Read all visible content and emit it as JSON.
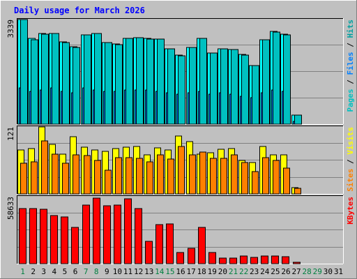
{
  "chart_data": {
    "type": "bar",
    "title": "Daily usage for March 2026",
    "categories": [
      "1",
      "2",
      "3",
      "4",
      "5",
      "6",
      "7",
      "8",
      "9",
      "10",
      "11",
      "12",
      "13",
      "14",
      "15",
      "16",
      "17",
      "18",
      "19",
      "20",
      "21",
      "22",
      "23",
      "24",
      "25",
      "26",
      "27",
      "28",
      "29",
      "30",
      "31"
    ],
    "weekend_days": [
      "1",
      "7",
      "8",
      "14",
      "15",
      "21",
      "22",
      "28",
      "29"
    ],
    "panels": [
      {
        "name": "hits",
        "scale_label": "3339",
        "ymax": 3339,
        "series": [
          {
            "name": "Hits",
            "color": "#00ffff",
            "shade": "#009999",
            "values": [
              3339,
              2730,
              2890,
              2900,
              2620,
              2460,
              2860,
              2900,
              2610,
              2550,
              2740,
              2770,
              2730,
              2720,
              2410,
              2200,
              2450,
              2740,
              2280,
              2410,
              2390,
              2220,
              1880,
              2700,
              2950,
              2870,
              290,
              0,
              0,
              0,
              0
            ]
          },
          {
            "name": "Files",
            "color": "#0080ff",
            "shade": "#0050a0",
            "values": [
              1150,
              1050,
              1100,
              1150,
              1050,
              1000,
              1150,
              1100,
              1050,
              1050,
              1100,
              1100,
              1100,
              1050,
              1000,
              950,
              1000,
              1050,
              950,
              1000,
              950,
              900,
              850,
              1000,
              1100,
              1050,
              100,
              0,
              0,
              0,
              0
            ]
          },
          {
            "name": "Pages",
            "color": "#00c0c0",
            "shade": "#008080",
            "values": [
              3339,
              2700,
              2880,
              2900,
              2600,
              2440,
              2850,
              2890,
              2600,
              2540,
              2730,
              2760,
              2720,
              2710,
              2400,
              2190,
              2440,
              2730,
              2270,
              2400,
              2380,
              2210,
              1870,
              2690,
              2940,
              2860,
              280,
              0,
              0,
              0,
              0
            ]
          }
        ],
        "legend": [
          {
            "text": "Pages",
            "color": "#00c0c0"
          },
          {
            "text": " / ",
            "color": "#000000"
          },
          {
            "text": "Files",
            "color": "#0080ff"
          },
          {
            "text": " / ",
            "color": "#000000"
          },
          {
            "text": "Hits",
            "color": "#00a0a0"
          }
        ]
      },
      {
        "name": "visits",
        "scale_label": "121",
        "ymax": 121,
        "series": [
          {
            "name": "Visits",
            "color": "#ffff00",
            "shade": "#a0a000",
            "values": [
              79,
              82,
              121,
              90,
              72,
              103,
              84,
              79,
              77,
              82,
              85,
              86,
              71,
              83,
              80,
              105,
              95,
              72,
              74,
              81,
              82,
              61,
              57,
              86,
              70,
              70,
              11,
              0,
              0,
              0,
              0
            ]
          },
          {
            "name": "Sites",
            "color": "#ff8000",
            "shade": "#a05000",
            "values": [
              55,
              58,
              96,
              72,
              55,
              70,
              69,
              60,
              43,
              65,
              65,
              64,
              58,
              70,
              63,
              86,
              71,
              75,
              64,
              64,
              71,
              57,
              40,
              66,
              61,
              47,
              10,
              0,
              0,
              0,
              0
            ]
          }
        ],
        "legend": [
          {
            "text": "Sites",
            "color": "#ff8000"
          },
          {
            "text": " / ",
            "color": "#000000"
          },
          {
            "text": "Visits",
            "color": "#ffff00"
          }
        ]
      },
      {
        "name": "kbytes",
        "scale_label": "58633",
        "ymax": 58633,
        "series": [
          {
            "name": "KBytes",
            "color": "#ff0000",
            "shade": "#a00000",
            "values": [
              48500,
              48500,
              47500,
              42000,
              41000,
              31700,
              51500,
              57500,
              50800,
              51000,
              56700,
              48000,
              19500,
              34200,
              34800,
              9500,
              13300,
              31900,
              9500,
              4800,
              4900,
              6900,
              5300,
              6500,
              6600,
              6300,
              1300,
              0,
              0,
              0,
              0
            ]
          }
        ],
        "legend": [
          {
            "text": "KBytes",
            "color": "#ff0000"
          }
        ]
      }
    ]
  }
}
